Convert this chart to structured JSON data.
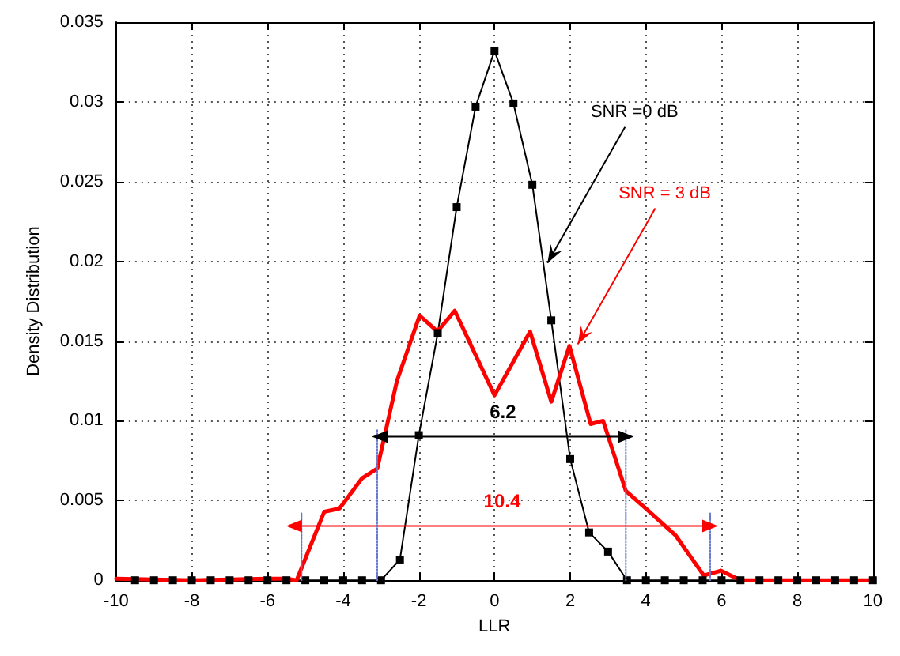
{
  "chart_data": {
    "type": "line",
    "xlabel": "LLR",
    "ylabel": "Density Distribution",
    "xlim": [
      -10,
      10
    ],
    "xticks": [
      -10,
      -8,
      -6,
      -4,
      -2,
      0,
      2,
      4,
      6,
      8,
      10
    ],
    "ylim": [
      0,
      0.035
    ],
    "yticks": [
      0,
      0.005,
      0.01,
      0.015,
      0.02,
      0.025,
      0.03,
      0.035
    ],
    "grid": true,
    "legend": false,
    "series": [
      {
        "color": "#000000",
        "marker": "square",
        "x": [
          -9.5,
          -9,
          -8.5,
          -8,
          -7.5,
          -7,
          -6.5,
          -6,
          -5.5,
          -5,
          -4.5,
          -4,
          -3.5,
          -3,
          -2.5,
          -2,
          -1.5,
          -1,
          -0.5,
          0,
          0.5,
          1,
          1.5,
          2,
          2.5,
          3,
          3.5,
          4,
          4.5,
          5,
          5.5,
          6,
          6.5,
          7,
          7.5,
          8,
          8.5,
          9,
          9.5,
          10
        ],
        "values": [
          0,
          0,
          0,
          0,
          0,
          0,
          0,
          0,
          0,
          0,
          0,
          0,
          0,
          0,
          0.0013,
          0.0091,
          0.0155,
          0.0234,
          0.0297,
          0.0332,
          0.0299,
          0.0248,
          0.0163,
          0.0076,
          0.003,
          0.0018,
          0,
          0,
          0,
          0,
          0,
          0,
          0,
          0,
          0,
          0,
          0,
          0,
          0,
          0
        ]
      },
      {
        "color": "#ff0000",
        "marker": "none",
        "x": [
          -10,
          -8,
          -6,
          -5.5,
          -5.23,
          -4.5,
          -4.1,
          -3.5,
          -3.1,
          -2.58,
          -1.98,
          -1.51,
          -1.05,
          0,
          0.94,
          1.5,
          1.98,
          2.54,
          2.87,
          3.47,
          4,
          4.79,
          5.53,
          5.98,
          6.5,
          8,
          10
        ],
        "values": [
          0.0001,
          0,
          0.0001,
          0.0001,
          0,
          0.0043,
          0.0045,
          0.0064,
          0.007,
          0.0125,
          0.0166,
          0.0156,
          0.0169,
          0.0116,
          0.0156,
          0.0112,
          0.0147,
          0.0098,
          0.01,
          0.0056,
          0.0045,
          0.0028,
          0.0003,
          0.0006,
          0,
          0,
          0
        ]
      },
      {
        "name": "6.2",
        "color": "#000000",
        "marker": "triangle",
        "x": [
          -3.03,
          3.47
        ],
        "values": [
          0.009,
          0.009
        ]
      },
      {
        "name": "10.4",
        "color": "#ff0000",
        "marker": "triangle",
        "x": [
          -5.3,
          5.7
        ],
        "values": [
          0.0034,
          0.0034
        ]
      },
      {
        "color": "#6677cc",
        "marker": "none",
        "line_style": "dotted",
        "x": [
          -5.1,
          -5.1
        ],
        "values": [
          0,
          0.0042
        ]
      },
      {
        "color": "#6677cc",
        "marker": "none",
        "line_style": "dotted",
        "x": [
          -3.1,
          -3.1
        ],
        "values": [
          0,
          0.0095
        ]
      },
      {
        "color": "#6677cc",
        "marker": "none",
        "line_style": "dotted",
        "x": [
          3.47,
          3.47
        ],
        "values": [
          0,
          0.0095
        ]
      },
      {
        "color": "#6677cc",
        "marker": "none",
        "line_style": "dotted",
        "x": [
          5.7,
          5.7
        ],
        "values": [
          0,
          0.0042
        ]
      }
    ],
    "annotations": [
      {
        "text": "SNR =0 dB",
        "x": 1.4,
        "y": 0.0199
      },
      {
        "text": "SNR = 3 dB",
        "x": 2.2,
        "y": 0.0148
      }
    ]
  }
}
